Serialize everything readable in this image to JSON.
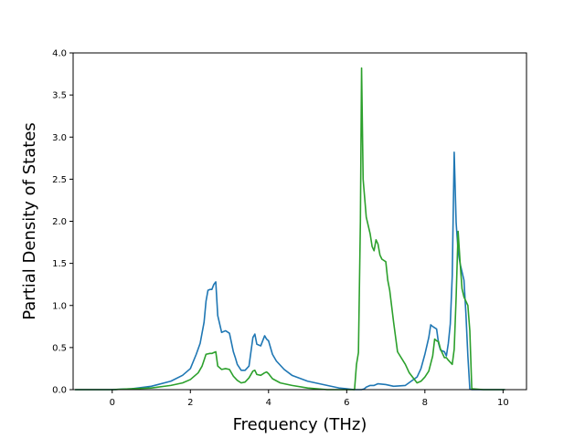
{
  "chart_data": {
    "type": "line",
    "title": "",
    "xlabel": "Frequency (THz)",
    "ylabel": "Partial Density of States",
    "xlim": [
      -1.0,
      10.6
    ],
    "ylim": [
      0.0,
      4.0
    ],
    "xticks": [
      0,
      2,
      4,
      6,
      8,
      10
    ],
    "yticks": [
      0.0,
      0.5,
      1.0,
      1.5,
      2.0,
      2.5,
      3.0,
      3.5,
      4.0
    ],
    "grid": false,
    "legend": "none",
    "series": [
      {
        "color": "#1f77b4",
        "x": [
          -0.95,
          0.0,
          0.5,
          1.0,
          1.5,
          1.8,
          2.0,
          2.15,
          2.25,
          2.35,
          2.4,
          2.45,
          2.5,
          2.55,
          2.6,
          2.65,
          2.7,
          2.8,
          2.9,
          3.0,
          3.1,
          3.15,
          3.2,
          3.3,
          3.4,
          3.5,
          3.6,
          3.65,
          3.7,
          3.75,
          3.8,
          3.9,
          3.95,
          4.0,
          4.05,
          4.1,
          4.2,
          4.4,
          4.6,
          5.0,
          5.5,
          5.8,
          6.0,
          6.2,
          6.3,
          6.38,
          6.45,
          6.5,
          6.6,
          6.7,
          6.8,
          7.0,
          7.2,
          7.5,
          7.8,
          7.9,
          8.0,
          8.1,
          8.15,
          8.2,
          8.3,
          8.35,
          8.4,
          8.5,
          8.55,
          8.6,
          8.65,
          8.7,
          8.75,
          8.8,
          8.85,
          8.9,
          9.0,
          9.05,
          9.1,
          9.15,
          9.2,
          9.5,
          10.05
        ],
        "y": [
          0.0,
          0.0,
          0.01,
          0.04,
          0.1,
          0.17,
          0.25,
          0.42,
          0.55,
          0.8,
          1.05,
          1.18,
          1.19,
          1.19,
          1.25,
          1.28,
          0.88,
          0.68,
          0.7,
          0.67,
          0.45,
          0.38,
          0.3,
          0.23,
          0.23,
          0.28,
          0.62,
          0.66,
          0.54,
          0.53,
          0.52,
          0.64,
          0.6,
          0.58,
          0.5,
          0.42,
          0.34,
          0.24,
          0.17,
          0.1,
          0.05,
          0.02,
          0.01,
          0.0,
          0.0,
          0.0,
          0.01,
          0.03,
          0.05,
          0.05,
          0.07,
          0.06,
          0.04,
          0.05,
          0.15,
          0.25,
          0.42,
          0.62,
          0.77,
          0.75,
          0.72,
          0.55,
          0.47,
          0.45,
          0.4,
          0.55,
          0.78,
          1.35,
          2.82,
          1.98,
          1.65,
          1.5,
          1.3,
          0.9,
          0.4,
          0.01,
          0.0,
          0.0,
          0.0
        ]
      },
      {
        "color": "#2ca02c",
        "x": [
          -0.95,
          0.0,
          0.5,
          1.0,
          1.5,
          1.8,
          2.0,
          2.2,
          2.3,
          2.35,
          2.4,
          2.5,
          2.55,
          2.6,
          2.65,
          2.7,
          2.8,
          2.9,
          3.0,
          3.1,
          3.2,
          3.3,
          3.4,
          3.5,
          3.6,
          3.65,
          3.7,
          3.8,
          3.9,
          3.95,
          4.0,
          4.1,
          4.3,
          4.6,
          5.0,
          5.5,
          6.0,
          6.2,
          6.25,
          6.3,
          6.35,
          6.38,
          6.42,
          6.5,
          6.6,
          6.65,
          6.7,
          6.75,
          6.8,
          6.85,
          6.9,
          7.0,
          7.05,
          7.1,
          7.2,
          7.3,
          7.5,
          7.6,
          7.8,
          7.9,
          8.0,
          8.1,
          8.2,
          8.25,
          8.3,
          8.35,
          8.4,
          8.5,
          8.55,
          8.6,
          8.7,
          8.75,
          8.8,
          8.85,
          8.9,
          8.95,
          9.0,
          9.05,
          9.1,
          9.15,
          9.2,
          9.5,
          10.05
        ],
        "y": [
          0.0,
          0.0,
          0.01,
          0.02,
          0.05,
          0.08,
          0.12,
          0.2,
          0.28,
          0.35,
          0.42,
          0.43,
          0.43,
          0.44,
          0.45,
          0.28,
          0.24,
          0.25,
          0.24,
          0.16,
          0.11,
          0.08,
          0.09,
          0.14,
          0.22,
          0.23,
          0.18,
          0.17,
          0.2,
          0.21,
          0.19,
          0.13,
          0.08,
          0.05,
          0.02,
          0.0,
          0.0,
          0.0,
          0.3,
          0.44,
          2.0,
          3.82,
          2.5,
          2.05,
          1.85,
          1.7,
          1.65,
          1.78,
          1.73,
          1.6,
          1.55,
          1.52,
          1.3,
          1.18,
          0.8,
          0.45,
          0.3,
          0.2,
          0.08,
          0.1,
          0.15,
          0.22,
          0.4,
          0.6,
          0.58,
          0.57,
          0.48,
          0.38,
          0.38,
          0.35,
          0.3,
          0.48,
          1.1,
          1.88,
          1.52,
          1.2,
          1.1,
          1.05,
          1.0,
          0.7,
          0.01,
          0.0,
          0.0
        ]
      }
    ]
  }
}
